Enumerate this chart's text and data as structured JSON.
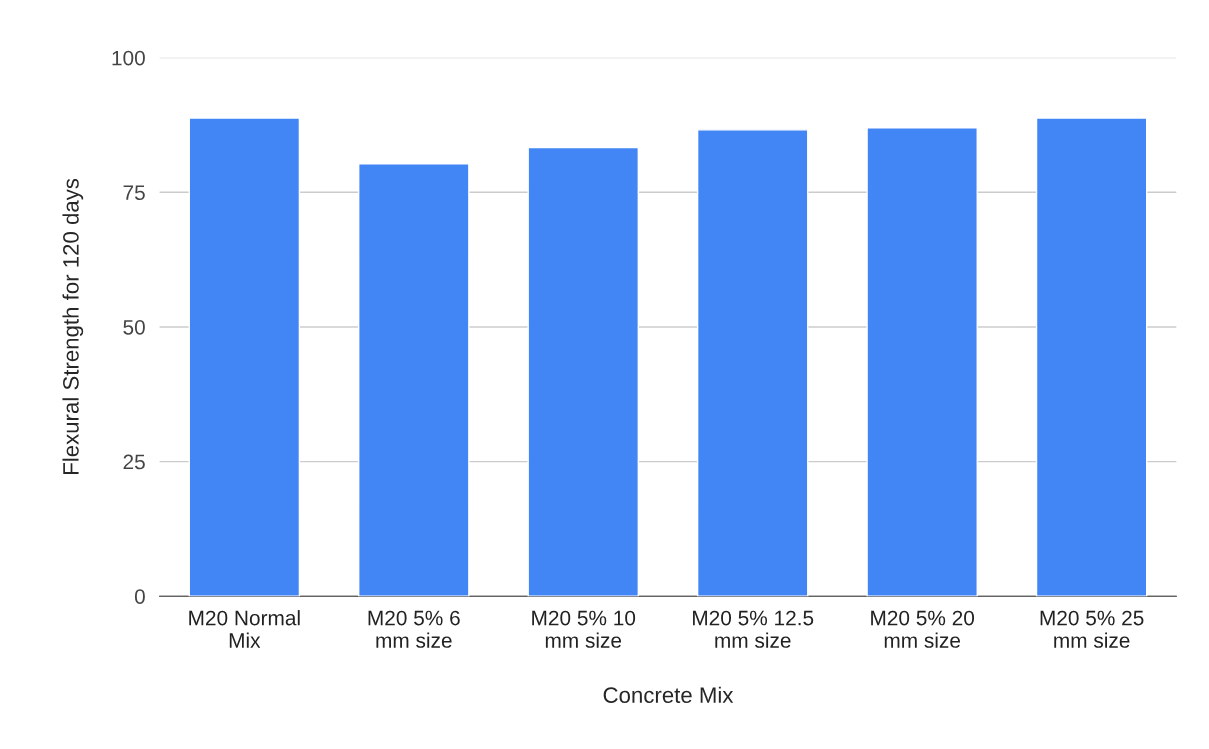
{
  "chart_data": {
    "type": "bar",
    "xlabel": "Concrete Mix",
    "ylabel": "Flexural Strength for 120 days",
    "categories": [
      "M20 Normal\nMix",
      "M20 5% 6\nmm size",
      "M20 5% 10\nmm size",
      "M20 5% 12.5\nmm size",
      "M20 5% 20\nmm size",
      "M20 5% 25\nmm size"
    ],
    "values": [
      88.8,
      80.3,
      83.3,
      86.6,
      87.0,
      88.8
    ],
    "color": "#4285f4",
    "ylim": [
      0,
      100
    ],
    "yticks": [
      0,
      25,
      50,
      75,
      100
    ],
    "grid": "y",
    "legend": false
  }
}
